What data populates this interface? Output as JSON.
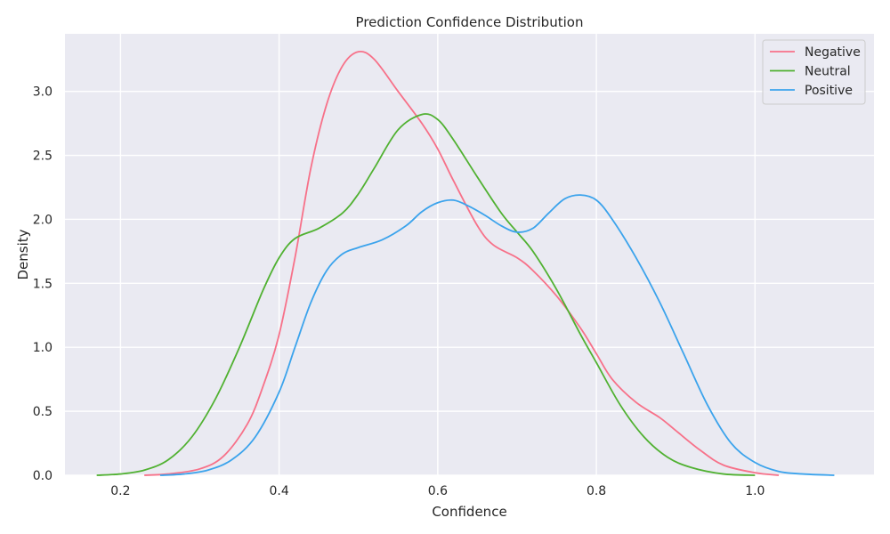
{
  "chart_data": {
    "type": "line",
    "title": "Prediction Confidence Distribution",
    "xlabel": "Confidence",
    "ylabel": "Density",
    "xlim": [
      0.13,
      1.15
    ],
    "ylim": [
      0,
      3.45
    ],
    "xticks": [
      0.2,
      0.4,
      0.6,
      0.8,
      1.0
    ],
    "xtick_labels": [
      "0.2",
      "0.4",
      "0.6",
      "0.8",
      "1.0"
    ],
    "yticks": [
      0.0,
      0.5,
      1.0,
      1.5,
      2.0,
      2.5,
      3.0
    ],
    "ytick_labels": [
      "0.0",
      "0.5",
      "1.0",
      "1.5",
      "2.0",
      "2.5",
      "3.0"
    ],
    "grid": true,
    "background": "#eaeaf2",
    "legend_position": "top-right",
    "series": [
      {
        "name": "Negative",
        "color": "#f77189",
        "points": [
          [
            0.23,
            0.0
          ],
          [
            0.26,
            0.01
          ],
          [
            0.3,
            0.05
          ],
          [
            0.33,
            0.15
          ],
          [
            0.36,
            0.4
          ],
          [
            0.38,
            0.7
          ],
          [
            0.4,
            1.1
          ],
          [
            0.42,
            1.7
          ],
          [
            0.44,
            2.4
          ],
          [
            0.46,
            2.9
          ],
          [
            0.48,
            3.2
          ],
          [
            0.5,
            3.31
          ],
          [
            0.52,
            3.25
          ],
          [
            0.55,
            3.0
          ],
          [
            0.58,
            2.75
          ],
          [
            0.6,
            2.55
          ],
          [
            0.62,
            2.3
          ],
          [
            0.65,
            1.95
          ],
          [
            0.67,
            1.8
          ],
          [
            0.7,
            1.7
          ],
          [
            0.72,
            1.6
          ],
          [
            0.75,
            1.4
          ],
          [
            0.78,
            1.15
          ],
          [
            0.8,
            0.95
          ],
          [
            0.82,
            0.75
          ],
          [
            0.85,
            0.57
          ],
          [
            0.88,
            0.45
          ],
          [
            0.9,
            0.35
          ],
          [
            0.93,
            0.2
          ],
          [
            0.96,
            0.08
          ],
          [
            1.0,
            0.02
          ],
          [
            1.03,
            0.0
          ]
        ]
      },
      {
        "name": "Neutral",
        "color": "#50b131",
        "points": [
          [
            0.17,
            0.0
          ],
          [
            0.2,
            0.01
          ],
          [
            0.23,
            0.04
          ],
          [
            0.26,
            0.12
          ],
          [
            0.29,
            0.3
          ],
          [
            0.32,
            0.6
          ],
          [
            0.35,
            1.0
          ],
          [
            0.38,
            1.45
          ],
          [
            0.4,
            1.7
          ],
          [
            0.42,
            1.85
          ],
          [
            0.45,
            1.93
          ],
          [
            0.48,
            2.05
          ],
          [
            0.5,
            2.2
          ],
          [
            0.52,
            2.4
          ],
          [
            0.55,
            2.7
          ],
          [
            0.58,
            2.82
          ],
          [
            0.6,
            2.78
          ],
          [
            0.62,
            2.62
          ],
          [
            0.65,
            2.33
          ],
          [
            0.68,
            2.05
          ],
          [
            0.7,
            1.9
          ],
          [
            0.72,
            1.75
          ],
          [
            0.75,
            1.45
          ],
          [
            0.78,
            1.1
          ],
          [
            0.8,
            0.88
          ],
          [
            0.83,
            0.55
          ],
          [
            0.86,
            0.3
          ],
          [
            0.89,
            0.14
          ],
          [
            0.92,
            0.06
          ],
          [
            0.96,
            0.01
          ],
          [
            1.0,
            0.0
          ]
        ]
      },
      {
        "name": "Positive",
        "color": "#3ba3ec",
        "points": [
          [
            0.25,
            0.0
          ],
          [
            0.28,
            0.01
          ],
          [
            0.31,
            0.04
          ],
          [
            0.34,
            0.12
          ],
          [
            0.37,
            0.3
          ],
          [
            0.4,
            0.65
          ],
          [
            0.42,
            1.0
          ],
          [
            0.44,
            1.35
          ],
          [
            0.46,
            1.6
          ],
          [
            0.48,
            1.73
          ],
          [
            0.5,
            1.78
          ],
          [
            0.53,
            1.84
          ],
          [
            0.56,
            1.95
          ],
          [
            0.58,
            2.06
          ],
          [
            0.6,
            2.13
          ],
          [
            0.62,
            2.15
          ],
          [
            0.64,
            2.1
          ],
          [
            0.66,
            2.03
          ],
          [
            0.68,
            1.95
          ],
          [
            0.7,
            1.9
          ],
          [
            0.72,
            1.93
          ],
          [
            0.74,
            2.05
          ],
          [
            0.76,
            2.16
          ],
          [
            0.78,
            2.19
          ],
          [
            0.8,
            2.15
          ],
          [
            0.82,
            2.0
          ],
          [
            0.85,
            1.7
          ],
          [
            0.88,
            1.35
          ],
          [
            0.91,
            0.95
          ],
          [
            0.94,
            0.55
          ],
          [
            0.97,
            0.25
          ],
          [
            1.0,
            0.1
          ],
          [
            1.03,
            0.03
          ],
          [
            1.06,
            0.01
          ],
          [
            1.1,
            0.0
          ]
        ]
      }
    ]
  }
}
